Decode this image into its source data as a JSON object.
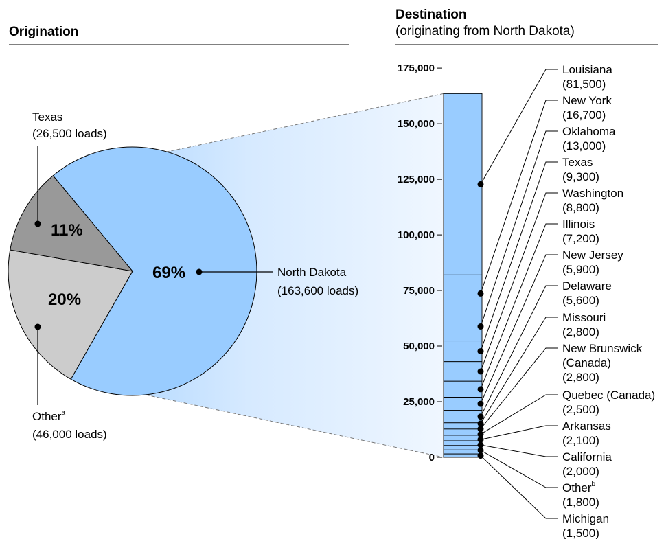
{
  "chart_data": [
    {
      "type": "pie",
      "title": "Origination",
      "colors": [
        "#99ccff",
        "#999999",
        "#cccccc"
      ],
      "slices": [
        {
          "label": "North Dakota",
          "value": 163600,
          "percent_label": "69%",
          "detail": "(163,600 loads)"
        },
        {
          "label": "Texas",
          "value": 26500,
          "percent_label": "11%",
          "detail": "(26,500 loads)"
        },
        {
          "label": "Other",
          "label_sup": "a",
          "value": 46000,
          "percent_label": "20%",
          "detail": "(46,000 loads)"
        }
      ]
    },
    {
      "type": "bar",
      "stacked": true,
      "title": "Destination",
      "subtitle": "(originating from North Dakota)",
      "ylim": [
        0,
        175000
      ],
      "yticks": [
        "175,000",
        "150,000",
        "125,000",
        "100,000",
        "75,000",
        "50,000",
        "25,000",
        "0"
      ],
      "ytick_values": [
        175000,
        150000,
        125000,
        100000,
        75000,
        50000,
        25000,
        0
      ],
      "bar_color": "#99ccff",
      "segments": [
        {
          "name": "Louisiana",
          "value": 81500,
          "value_label": "(81,500)"
        },
        {
          "name": "New York",
          "value": 16700,
          "value_label": "(16,700)"
        },
        {
          "name": "Oklahoma",
          "value": 13000,
          "value_label": "(13,000)"
        },
        {
          "name": "Texas",
          "value": 9300,
          "value_label": "(9,300)"
        },
        {
          "name": "Washington",
          "value": 8800,
          "value_label": "(8,800)"
        },
        {
          "name": "Illinois",
          "value": 7200,
          "value_label": "(7,200)"
        },
        {
          "name": "New Jersey",
          "value": 5900,
          "value_label": "(5,900)"
        },
        {
          "name": "Delaware",
          "value": 5600,
          "value_label": "(5,600)"
        },
        {
          "name": "Missouri",
          "value": 2800,
          "value_label": "(2,800)"
        },
        {
          "name": "New Brunswick",
          "name_line2": "(Canada)",
          "value": 2800,
          "value_label": "(2,800)"
        },
        {
          "name": "Quebec (Canada)",
          "value": 2500,
          "value_label": "(2,500)"
        },
        {
          "name": "Arkansas",
          "value": 2100,
          "value_label": "(2,100)"
        },
        {
          "name": "California",
          "value": 2000,
          "value_label": "(2,000)"
        },
        {
          "name": "Other",
          "name_sup": "b",
          "value": 1800,
          "value_label": "(1,800)"
        },
        {
          "name": "Michigan",
          "value": 1500,
          "value_label": "(1,500)"
        }
      ]
    }
  ]
}
